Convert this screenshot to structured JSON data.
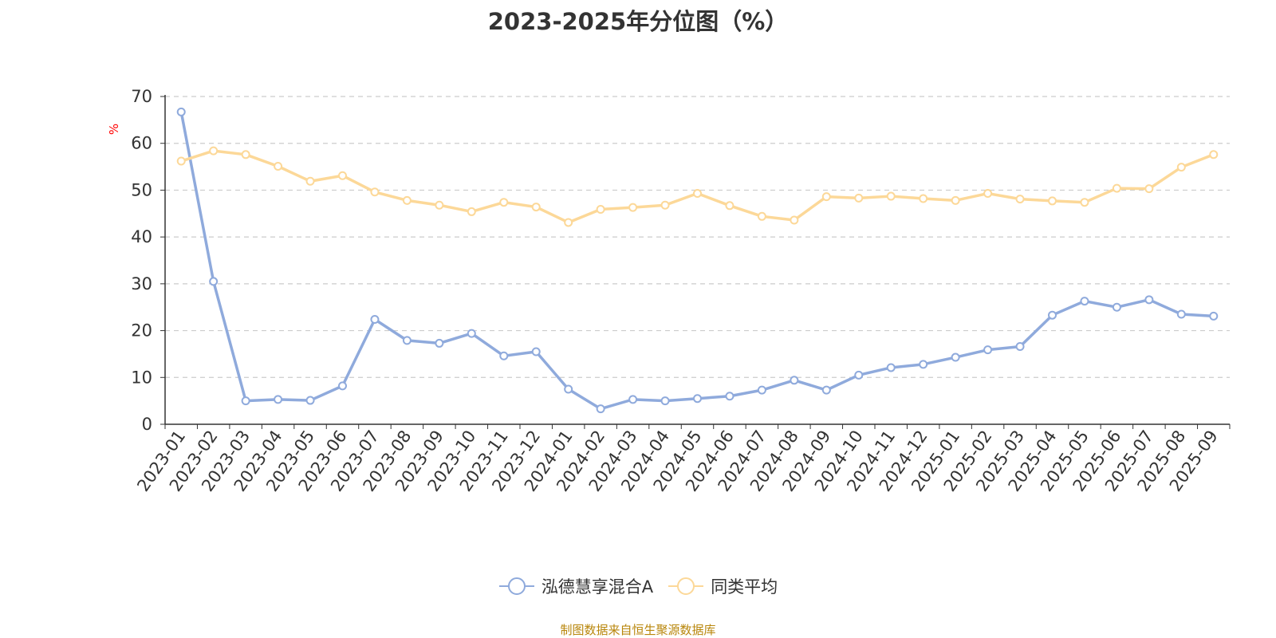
{
  "chart_data": {
    "type": "line",
    "title": "2023-2025年分位图（%）",
    "ylabel": "%",
    "xlabel": "",
    "ylim": [
      0,
      70
    ],
    "yticks": [
      0,
      10,
      20,
      30,
      40,
      50,
      60,
      70
    ],
    "grid": true,
    "legend_position": "bottom",
    "categories": [
      "2023-01",
      "2023-02",
      "2023-03",
      "2023-04",
      "2023-05",
      "2023-06",
      "2023-07",
      "2023-08",
      "2023-09",
      "2023-10",
      "2023-11",
      "2023-12",
      "2024-01",
      "2024-02",
      "2024-03",
      "2024-04",
      "2024-05",
      "2024-06",
      "2024-07",
      "2024-08",
      "2024-09",
      "2024-10",
      "2024-11",
      "2024-12",
      "2025-01",
      "2025-02",
      "2025-03",
      "2025-04",
      "2025-05",
      "2025-06",
      "2025-07",
      "2025-08",
      "2025-09"
    ],
    "series": [
      {
        "name": "泓德慧享混合A",
        "color": "#8faadc",
        "values": [
          66.7,
          30.5,
          5.0,
          5.3,
          5.1,
          8.2,
          22.4,
          17.9,
          17.3,
          19.4,
          14.6,
          15.5,
          7.5,
          3.3,
          5.3,
          5.0,
          5.5,
          6.0,
          7.3,
          9.4,
          7.3,
          10.5,
          12.1,
          12.8,
          14.3,
          15.9,
          16.6,
          23.3,
          26.3,
          25.0,
          26.6,
          23.5,
          23.1
        ]
      },
      {
        "name": "同类平均",
        "color": "#fcd898",
        "values": [
          56.2,
          58.4,
          57.6,
          55.1,
          51.9,
          53.1,
          49.6,
          47.8,
          46.8,
          45.4,
          47.4,
          46.4,
          43.1,
          45.9,
          46.3,
          46.8,
          49.3,
          46.7,
          44.4,
          43.6,
          48.6,
          48.3,
          48.7,
          48.2,
          47.8,
          49.3,
          48.1,
          47.7,
          47.4,
          50.4,
          50.3,
          54.9,
          57.6
        ]
      }
    ]
  },
  "source_text": "制图数据来自恒生聚源数据库"
}
